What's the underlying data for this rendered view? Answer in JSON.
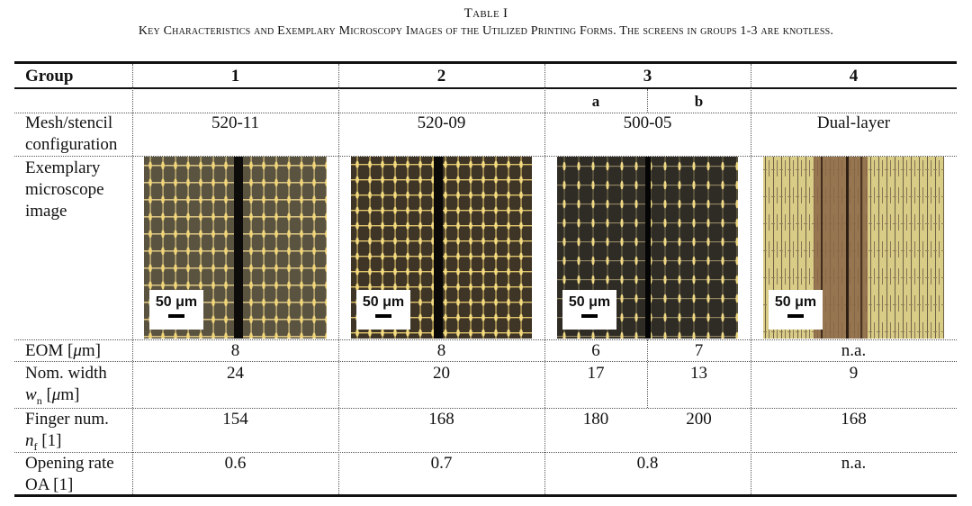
{
  "caption": {
    "label": "Table I",
    "title": "Key Characteristics and Exemplary Microscopy Images of the Utilized Printing Forms. The screens in groups 1-3 are knotless."
  },
  "header": {
    "group_label": "Group",
    "groups": [
      "1",
      "2",
      "3",
      "4"
    ],
    "sub_a": "a",
    "sub_b": "b"
  },
  "rows": {
    "mesh": {
      "label_line1": "Mesh/stencil",
      "label_line2": "configuration",
      "g1": "520-11",
      "g2": "520-09",
      "g3": "500-05",
      "g4": "Dual-layer"
    },
    "image": {
      "label_line1": "Exemplary",
      "label_line2": "microscope",
      "label_line3": "image",
      "scale_label": "50 μm"
    },
    "eom": {
      "label_prefix": "EOM [",
      "label_mu": "μ",
      "label_suffix": "m]",
      "g1": "8",
      "g2": "8",
      "g3a": "6",
      "g3b": "7",
      "g4": "n.a."
    },
    "width": {
      "label_line1": "Nom. width",
      "label_w": "w",
      "label_sub": "n",
      "label_rest1": " [",
      "label_mu": "μ",
      "label_rest2": "m]",
      "g1": "24",
      "g2": "20",
      "g3a": "17",
      "g3b": "13",
      "g4": "9"
    },
    "finger": {
      "label_line1": "Finger num.",
      "label_n": "n",
      "label_sub": "f",
      "label_rest": " [1]",
      "g1": "154",
      "g2": "168",
      "g3a": "180",
      "g3b": "200",
      "g4": "168"
    },
    "opening": {
      "label_line1": "Opening rate",
      "label_line2": "OA [1]",
      "g1": "0.6",
      "g2": "0.7",
      "g3": "0.8",
      "g4": "n.a."
    }
  },
  "colors": {
    "mesh1_bg": "#5a5340",
    "mesh2_bg": "#3e3526",
    "mesh3_bg": "#2f2c25",
    "mesh_wire": "#f2d77a",
    "dual_layer_light": "#d8c984",
    "dual_layer_dark": "#7a5a3d"
  }
}
